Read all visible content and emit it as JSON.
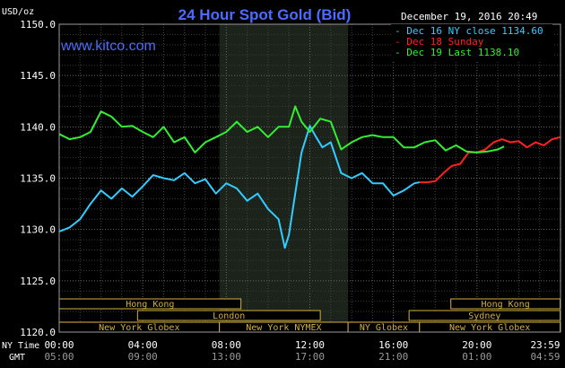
{
  "chart_data": {
    "type": "line",
    "title": "24 Hour Spot Gold (Bid)",
    "ylabel": "USD/oz",
    "date_label": "December 19, 2016 20:49",
    "watermark": "www.kitco.com",
    "ylim": [
      1120,
      1150
    ],
    "yticks": [
      "1120.0",
      "1125.0",
      "1130.0",
      "1135.0",
      "1140.0",
      "1145.0",
      "1150.0"
    ],
    "xticks_ny": [
      "00:00",
      "04:00",
      "08:00",
      "12:00",
      "16:00",
      "20:00",
      "23:59"
    ],
    "xticks_gmt": [
      "05:00",
      "09:00",
      "13:00",
      "17:00",
      "21:00",
      "01:00",
      "04:59"
    ],
    "xaxis_row_labels": {
      "ny": "NY Time",
      "gmt": "GMT"
    },
    "grid": true,
    "legend_position": "top-right",
    "highlight_window_hours": [
      7.67,
      13.83
    ],
    "sessions": [
      {
        "label": "Hong Kong",
        "start_hour": 0,
        "end_hour": 8.7,
        "row": 0
      },
      {
        "label": "Hong Kong",
        "start_hour": 18.75,
        "end_hour": 23.98,
        "row": 0
      },
      {
        "label": "London",
        "start_hour": 3.75,
        "end_hour": 12.5,
        "row": 1
      },
      {
        "label": "Sydney",
        "start_hour": 16.75,
        "end_hour": 23.98,
        "row": 1
      },
      {
        "label": "New York Globex",
        "start_hour": 0,
        "end_hour": 7.67,
        "row": 2
      },
      {
        "label": "New York NYMEX",
        "start_hour": 7.67,
        "end_hour": 13.83,
        "row": 2
      },
      {
        "label": "NY Globex",
        "start_hour": 13.83,
        "end_hour": 17.25,
        "row": 2
      },
      {
        "label": "New York Globex",
        "start_hour": 17.25,
        "end_hour": 23.98,
        "row": 2
      }
    ],
    "series": [
      {
        "name": "Dec 16 NY close 1134.60",
        "color": "#33ccff",
        "x": [
          0,
          0.5,
          1,
          1.5,
          2,
          2.5,
          3,
          3.5,
          4,
          4.5,
          5,
          5.5,
          6,
          6.5,
          7,
          7.5,
          8,
          8.5,
          9,
          9.5,
          10,
          10.5,
          10.8,
          11,
          11.3,
          11.6,
          12,
          12.3,
          12.6,
          13,
          13.5,
          14,
          14.5,
          15,
          15.5,
          16,
          16.5,
          17,
          17.25
        ],
        "y": [
          1129.8,
          1130.2,
          1131.0,
          1132.5,
          1133.8,
          1133.0,
          1134.0,
          1133.2,
          1134.2,
          1135.3,
          1135.0,
          1134.8,
          1135.5,
          1134.5,
          1134.9,
          1133.5,
          1134.5,
          1134.0,
          1132.8,
          1133.5,
          1132.0,
          1131.0,
          1128.2,
          1129.5,
          1133.5,
          1137.5,
          1140.1,
          1139.0,
          1138.0,
          1138.5,
          1135.5,
          1135.0,
          1135.5,
          1134.5,
          1134.5,
          1133.3,
          1133.8,
          1134.5,
          1134.6
        ]
      },
      {
        "name": "Dec 18 Sunday",
        "color": "#ff2020",
        "x": [
          17.25,
          17.6,
          18,
          18.4,
          18.8,
          19.2,
          19.6,
          20,
          20.4,
          20.8,
          21.2,
          21.6,
          22,
          22.4,
          22.8,
          23.2,
          23.6,
          23.98
        ],
        "y": [
          1134.6,
          1134.6,
          1134.7,
          1135.5,
          1136.2,
          1136.4,
          1137.5,
          1137.5,
          1137.8,
          1138.5,
          1138.8,
          1138.5,
          1138.6,
          1138.0,
          1138.5,
          1138.2,
          1138.8,
          1139.0
        ]
      },
      {
        "name": "Dec 19 Last 1138.10",
        "color": "#33ee33",
        "x": [
          0,
          0.5,
          1,
          1.5,
          2,
          2.5,
          3,
          3.5,
          4,
          4.5,
          5,
          5.5,
          6,
          6.5,
          7,
          7.5,
          8,
          8.5,
          9,
          9.5,
          10,
          10.5,
          11,
          11.3,
          11.6,
          12,
          12.5,
          13,
          13.5,
          14,
          14.5,
          15,
          15.5,
          16,
          16.5,
          17,
          17.5,
          18,
          18.5,
          19,
          19.5,
          20,
          20.5,
          21,
          21.3
        ],
        "y": [
          1139.3,
          1138.8,
          1139.0,
          1139.5,
          1141.5,
          1141.0,
          1140.0,
          1140.1,
          1139.5,
          1139.0,
          1140.0,
          1138.5,
          1139.0,
          1137.5,
          1138.5,
          1139.0,
          1139.5,
          1140.5,
          1139.5,
          1140.0,
          1139.0,
          1140.0,
          1140.0,
          1142.0,
          1140.5,
          1139.5,
          1140.8,
          1140.5,
          1137.8,
          1138.5,
          1139.0,
          1139.2,
          1139.0,
          1139.0,
          1138.0,
          1138.0,
          1138.5,
          1138.7,
          1137.7,
          1138.2,
          1137.6,
          1137.5,
          1137.6,
          1137.8,
          1138.1
        ]
      }
    ]
  }
}
